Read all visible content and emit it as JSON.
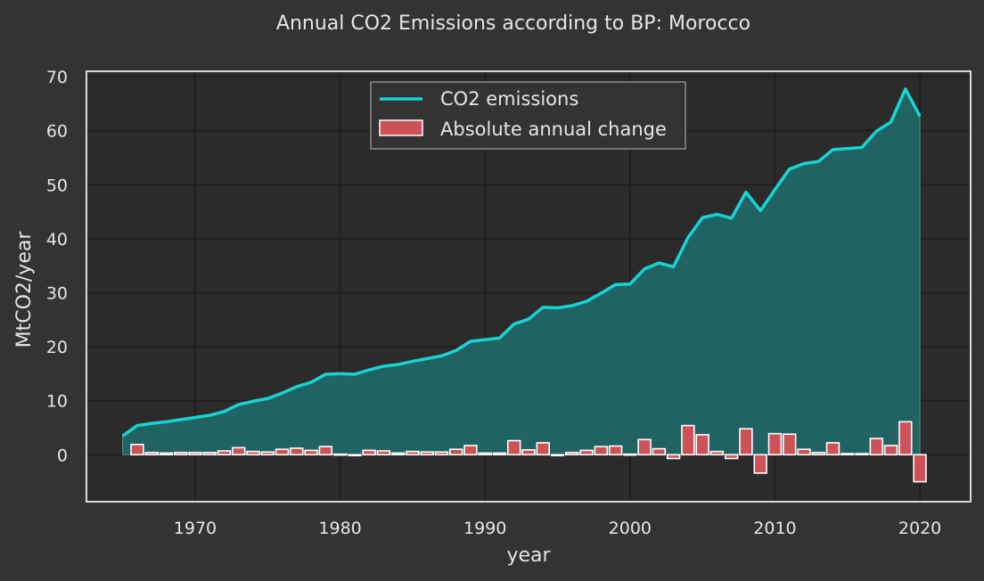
{
  "chart_data": {
    "type": "line",
    "title": "Annual CO2 Emissions according to BP: Morocco",
    "xlabel": "year",
    "ylabel": "MtCO2/year",
    "xlim": [
      1962.5,
      2023.5
    ],
    "ylim": [
      -8.7,
      71
    ],
    "x_ticks": [
      1970,
      1980,
      1990,
      2000,
      2010,
      2020
    ],
    "y_ticks": [
      0,
      10,
      20,
      30,
      40,
      50,
      60,
      70
    ],
    "grid": true,
    "legend_position": "top-center",
    "colors": {
      "background": "#333333",
      "plot_area": "#2b2b2b",
      "grid": "#1f1f1f",
      "frame": "#d9d9d9",
      "line": "#17d4d4",
      "fill": "#216666",
      "bar": "#cd5257",
      "bar_edge": "#ffffff"
    },
    "series": [
      {
        "name": "CO2 emissions",
        "kind": "line-area",
        "x": [
          1965,
          1966,
          1967,
          1968,
          1969,
          1970,
          1971,
          1972,
          1973,
          1974,
          1975,
          1976,
          1977,
          1978,
          1979,
          1980,
          1981,
          1982,
          1983,
          1984,
          1985,
          1986,
          1987,
          1988,
          1989,
          1990,
          1991,
          1992,
          1993,
          1994,
          1995,
          1996,
          1997,
          1998,
          1999,
          2000,
          2001,
          2002,
          2003,
          2004,
          2005,
          2006,
          2007,
          2008,
          2009,
          2010,
          2011,
          2012,
          2013,
          2014,
          2015,
          2016,
          2017,
          2018,
          2019,
          2020
        ],
        "values": [
          3.5,
          5.4,
          5.8,
          6.1,
          6.5,
          6.9,
          7.3,
          8.0,
          9.3,
          9.9,
          10.4,
          11.4,
          12.6,
          13.4,
          14.9,
          15.0,
          14.9,
          15.7,
          16.4,
          16.7,
          17.3,
          17.8,
          18.3,
          19.3,
          21.0,
          21.3,
          21.6,
          24.2,
          25.1,
          27.3,
          27.2,
          27.6,
          28.4,
          29.9,
          31.5,
          31.6,
          34.4,
          35.5,
          34.8,
          40.2,
          43.9,
          44.5,
          43.8,
          48.6,
          45.2,
          49.1,
          52.9,
          53.9,
          54.3,
          56.5,
          56.7,
          56.9,
          59.9,
          61.6,
          67.7,
          62.7
        ]
      },
      {
        "name": "Absolute annual change",
        "kind": "bar",
        "x": [
          1966,
          1967,
          1968,
          1969,
          1970,
          1971,
          1972,
          1973,
          1974,
          1975,
          1976,
          1977,
          1978,
          1979,
          1980,
          1981,
          1982,
          1983,
          1984,
          1985,
          1986,
          1987,
          1988,
          1989,
          1990,
          1991,
          1992,
          1993,
          1994,
          1995,
          1996,
          1997,
          1998,
          1999,
          2000,
          2001,
          2002,
          2003,
          2004,
          2005,
          2006,
          2007,
          2008,
          2009,
          2010,
          2011,
          2012,
          2013,
          2014,
          2015,
          2016,
          2017,
          2018,
          2019,
          2020
        ],
        "values": [
          1.9,
          0.4,
          0.3,
          0.4,
          0.4,
          0.4,
          0.7,
          1.3,
          0.6,
          0.5,
          1.0,
          1.2,
          0.8,
          1.5,
          0.1,
          -0.1,
          0.8,
          0.7,
          0.3,
          0.6,
          0.5,
          0.5,
          1.0,
          1.7,
          0.3,
          0.3,
          2.6,
          0.9,
          2.2,
          -0.1,
          0.4,
          0.8,
          1.5,
          1.6,
          0.1,
          2.8,
          1.1,
          -0.7,
          5.4,
          3.7,
          0.6,
          -0.7,
          4.8,
          -3.4,
          3.9,
          3.8,
          1.0,
          0.4,
          2.2,
          0.2,
          0.2,
          3.0,
          1.7,
          6.1,
          -5.0
        ]
      }
    ]
  }
}
